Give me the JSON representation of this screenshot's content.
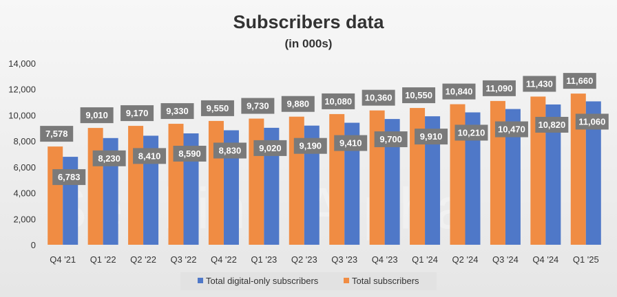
{
  "chart_data": {
    "type": "bar",
    "title": "Subscribers data",
    "subtitle": "(in 000s)",
    "categories": [
      "Q4 '21",
      "Q1 '22",
      "Q2 '22",
      "Q3 '22",
      "Q4 '22",
      "Q1 '23",
      "Q2 '23",
      "Q3 '23",
      "Q4 '23",
      "Q1 '24",
      "Q2 '24",
      "Q3 '24",
      "Q4 '24",
      "Q1 '25"
    ],
    "series": [
      {
        "name": "Total subscribers",
        "color": "#f08c43",
        "values": [
          7578,
          9010,
          9170,
          9330,
          9550,
          9730,
          9880,
          10080,
          10360,
          10550,
          10840,
          11090,
          11430,
          11660
        ],
        "labels": [
          "7,578",
          "9,010",
          "9,170",
          "9,330",
          "9,550",
          "9,730",
          "9,880",
          "10,080",
          "10,360",
          "10,550",
          "10,840",
          "11,090",
          "11,430",
          "11,660"
        ]
      },
      {
        "name": "Total digital-only subscribers",
        "color": "#4f78c8",
        "values": [
          6783,
          8230,
          8410,
          8590,
          8830,
          9020,
          9190,
          9410,
          9700,
          9910,
          10210,
          10470,
          10820,
          11060
        ],
        "labels": [
          "6,783",
          "8,230",
          "8,410",
          "8,590",
          "8,830",
          "9,020",
          "9,190",
          "9,410",
          "9,700",
          "9,910",
          "10,210",
          "10,470",
          "10,820",
          "11,060"
        ]
      }
    ],
    "legend_order": [
      "Total digital-only subscribers",
      "Total subscribers"
    ],
    "ylim": [
      0,
      14000
    ],
    "yticks": [
      0,
      2000,
      4000,
      6000,
      8000,
      10000,
      12000,
      14000
    ],
    "ytick_labels": [
      "0",
      "2,000",
      "4,000",
      "6,000",
      "8,000",
      "10,000",
      "12,000",
      "14,000"
    ],
    "grid": false,
    "legend_position": "bottom",
    "label_box_color": "#7a7a7a",
    "watermark": "Seeking Alpha"
  }
}
